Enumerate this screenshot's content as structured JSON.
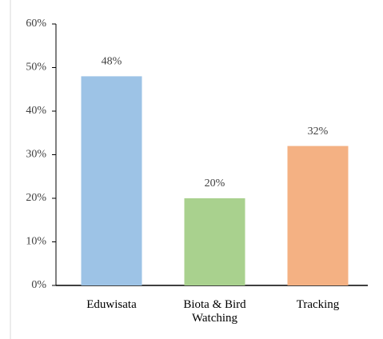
{
  "chart_data": {
    "type": "bar",
    "categories": [
      "Eduwisata",
      "Biota & Bird Watching",
      "Tracking"
    ],
    "values": [
      48,
      20,
      32
    ],
    "value_labels": [
      "48%",
      "20%",
      "32%"
    ],
    "colors": [
      "#9dc3e6",
      "#a9d18e",
      "#f4b183"
    ],
    "ylim": [
      0,
      60
    ],
    "yticks": [
      {
        "value": 0,
        "label": "0%"
      },
      {
        "value": 10,
        "label": "10%"
      },
      {
        "value": 20,
        "label": "20%"
      },
      {
        "value": 30,
        "label": "30%"
      },
      {
        "value": 40,
        "label": "40%"
      },
      {
        "value": 50,
        "label": "50%"
      },
      {
        "value": 60,
        "label": "60%"
      }
    ],
    "grid": false
  }
}
